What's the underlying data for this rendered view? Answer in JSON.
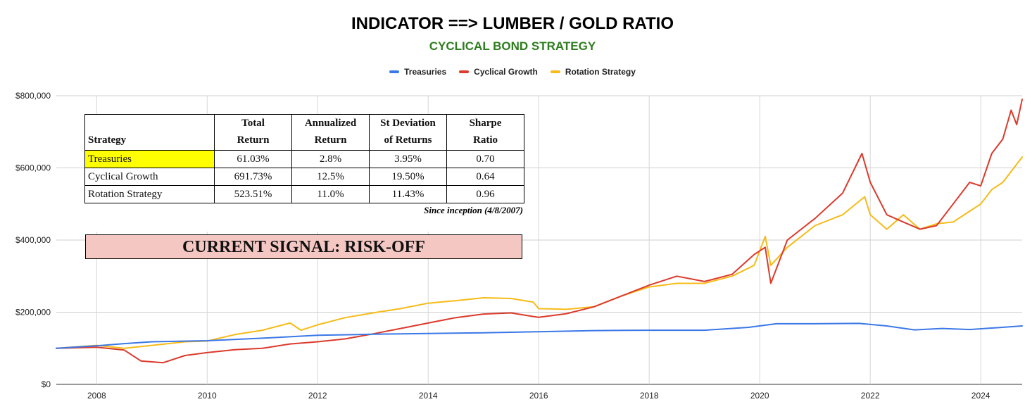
{
  "chart_data": {
    "type": "line",
    "title": "INDICATOR ==> LUMBER / GOLD RATIO",
    "subtitle": "CYCLICAL BOND STRATEGY",
    "xlabel": "",
    "ylabel": "",
    "xlim": [
      2007.27,
      2024.75
    ],
    "ylim": [
      0,
      800000
    ],
    "y_ticks": [
      0,
      200000,
      400000,
      600000,
      800000
    ],
    "y_tick_labels": [
      "$0",
      "$200,000",
      "$400,000",
      "$600,000",
      "$800,000"
    ],
    "x_ticks": [
      2008,
      2010,
      2012,
      2014,
      2016,
      2018,
      2020,
      2022,
      2024
    ],
    "x_tick_labels": [
      "2008",
      "2010",
      "2012",
      "2014",
      "2016",
      "2018",
      "2020",
      "2022",
      "2024"
    ],
    "grid": true,
    "legend_position": "top",
    "series": [
      {
        "name": "Treasuries",
        "color": "#3b78e7",
        "x": [
          2007.27,
          2008.0,
          2008.5,
          2009.0,
          2010.0,
          2011.0,
          2012.0,
          2013.0,
          2014.0,
          2015.0,
          2016.0,
          2017.0,
          2018.0,
          2019.0,
          2019.8,
          2020.3,
          2021.0,
          2021.8,
          2022.3,
          2022.8,
          2023.3,
          2023.8,
          2024.3,
          2024.75
        ],
        "y": [
          100000,
          107000,
          113000,
          118000,
          121000,
          128000,
          136000,
          139000,
          141000,
          143000,
          146000,
          149000,
          150000,
          150000,
          158000,
          168000,
          168000,
          169000,
          162000,
          151000,
          155000,
          152000,
          157000,
          162000
        ]
      },
      {
        "name": "Cyclical Growth",
        "color": "#db3a2c",
        "x": [
          2007.27,
          2008.0,
          2008.5,
          2008.8,
          2009.2,
          2009.6,
          2010.0,
          2010.5,
          2011.0,
          2011.5,
          2012.0,
          2012.5,
          2013.0,
          2013.5,
          2014.0,
          2014.5,
          2015.0,
          2015.5,
          2015.9,
          2016.0,
          2016.5,
          2017.0,
          2017.5,
          2018.0,
          2018.5,
          2019.0,
          2019.5,
          2019.9,
          2020.1,
          2020.2,
          2020.5,
          2021.0,
          2021.5,
          2021.85,
          2022.0,
          2022.3,
          2022.6,
          2022.9,
          2023.2,
          2023.5,
          2023.8,
          2024.0,
          2024.2,
          2024.4,
          2024.55,
          2024.65,
          2024.75
        ],
        "y": [
          100000,
          103000,
          95000,
          65000,
          60000,
          80000,
          88000,
          96000,
          100000,
          112000,
          118000,
          126000,
          140000,
          155000,
          170000,
          185000,
          195000,
          198000,
          188000,
          186000,
          196000,
          215000,
          245000,
          275000,
          300000,
          285000,
          305000,
          360000,
          380000,
          280000,
          400000,
          460000,
          530000,
          640000,
          560000,
          470000,
          450000,
          430000,
          440000,
          500000,
          560000,
          550000,
          640000,
          680000,
          760000,
          720000,
          790000
        ]
      },
      {
        "name": "Rotation Strategy",
        "color": "#f6bb17",
        "x": [
          2007.27,
          2008.0,
          2008.5,
          2009.0,
          2009.6,
          2010.0,
          2010.5,
          2011.0,
          2011.5,
          2011.7,
          2012.0,
          2012.5,
          2013.0,
          2013.5,
          2014.0,
          2014.5,
          2015.0,
          2015.5,
          2015.9,
          2016.0,
          2016.5,
          2017.0,
          2017.5,
          2018.0,
          2018.5,
          2019.0,
          2019.5,
          2019.9,
          2020.1,
          2020.2,
          2020.5,
          2021.0,
          2021.5,
          2021.9,
          2022.0,
          2022.3,
          2022.6,
          2022.9,
          2023.2,
          2023.5,
          2023.8,
          2024.0,
          2024.2,
          2024.4,
          2024.6,
          2024.75
        ],
        "y": [
          100000,
          108000,
          100000,
          108000,
          118000,
          120000,
          138000,
          150000,
          170000,
          150000,
          165000,
          185000,
          198000,
          210000,
          225000,
          232000,
          240000,
          238000,
          228000,
          210000,
          208000,
          215000,
          245000,
          270000,
          280000,
          280000,
          300000,
          330000,
          410000,
          330000,
          380000,
          440000,
          470000,
          520000,
          470000,
          430000,
          470000,
          430000,
          445000,
          450000,
          480000,
          500000,
          540000,
          560000,
          600000,
          630000
        ]
      }
    ]
  },
  "stats_table": {
    "headers": {
      "strategy": "Strategy",
      "total_line1": "Total",
      "total_line2": "Return",
      "annualized_line1": "Annualized",
      "annualized_line2": "Return",
      "stdev_line1": "St Deviation",
      "stdev_line2": "of Returns",
      "sharpe_line1": "Sharpe",
      "sharpe_line2": "Ratio"
    },
    "rows": [
      {
        "strategy": "Treasuries",
        "total_return": "61.03%",
        "annualized_return": "2.8%",
        "st_deviation": "3.95%",
        "sharpe_ratio": "0.70"
      },
      {
        "strategy": "Cyclical Growth",
        "total_return": "691.73%",
        "annualized_return": "12.5%",
        "st_deviation": "19.50%",
        "sharpe_ratio": "0.64"
      },
      {
        "strategy": "Rotation Strategy",
        "total_return": "523.51%",
        "annualized_return": "11.0%",
        "st_deviation": "11.43%",
        "sharpe_ratio": "0.96"
      }
    ],
    "note": "Since inception (4/8/2007)",
    "highlight_color": "#ffff00"
  },
  "signal": {
    "text": "CURRENT SIGNAL: RISK-OFF",
    "background": "#f4c7c3"
  }
}
